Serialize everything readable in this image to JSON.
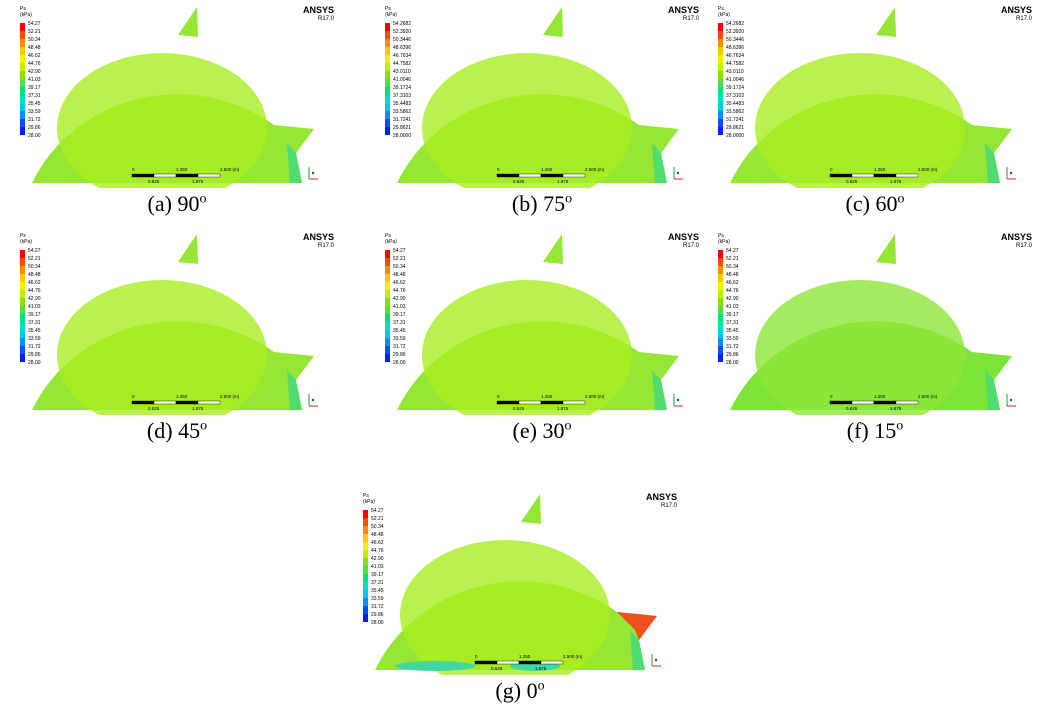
{
  "common": {
    "brand": "ANSYS",
    "version": "R17.0",
    "legend_title": "Ps",
    "legend_unit": "(kPa)",
    "scale_top": [
      "0",
      "1.250",
      "2.500 (m)"
    ],
    "scale_bottom": [
      "0.625",
      "1.875"
    ]
  },
  "legends": {
    "short": [
      "54.27",
      "52.21",
      "50.34",
      "48.48",
      "46.62",
      "44.76",
      "42.90",
      "41.03",
      "39.17",
      "37.31",
      "35.45",
      "33.59",
      "31.72",
      "29.86",
      "28.00"
    ],
    "long": [
      "54.2682",
      "52.3920",
      "50.3446",
      "48.6396",
      "46.7634",
      "44.7582",
      "43.0110",
      "41.0046",
      "39.1724",
      "37.3103",
      "35.4483",
      "33.5862",
      "31.7241",
      "29.8621",
      "28.0000"
    ]
  },
  "panels": [
    {
      "label": "(a) 90",
      "sup": "o",
      "legend": "short"
    },
    {
      "label": "(b) 75",
      "sup": "o",
      "legend": "long"
    },
    {
      "label": "(c) 60",
      "sup": "o",
      "legend": "long"
    },
    {
      "label": "(d) 45",
      "sup": "o",
      "legend": "short"
    },
    {
      "label": "(e) 30",
      "sup": "o",
      "legend": "short"
    },
    {
      "label": "(f) 15",
      "sup": "o",
      "legend": "short"
    },
    {
      "label": "(g) 0",
      "sup": "o",
      "legend": "short"
    }
  ]
}
